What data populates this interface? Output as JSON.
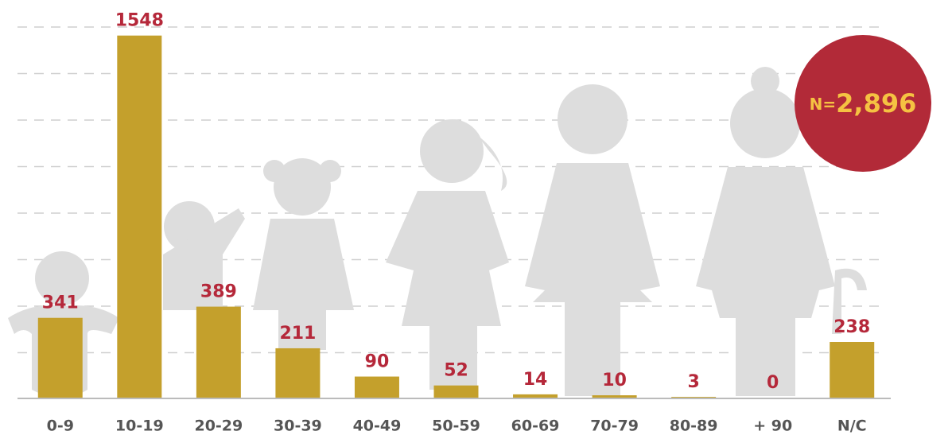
{
  "chart_data": {
    "type": "bar",
    "categories": [
      "0-9",
      "10-19",
      "20-29",
      "30-39",
      "40-49",
      "50-59",
      "60-69",
      "70-79",
      "80-89",
      "+ 90",
      "N/C"
    ],
    "values": [
      341,
      1548,
      389,
      211,
      90,
      52,
      14,
      10,
      3,
      0,
      238
    ],
    "color": "#c4a02c",
    "ylim": [
      0,
      1700
    ],
    "badge": {
      "prefix": "N=",
      "total": "2,896"
    }
  }
}
